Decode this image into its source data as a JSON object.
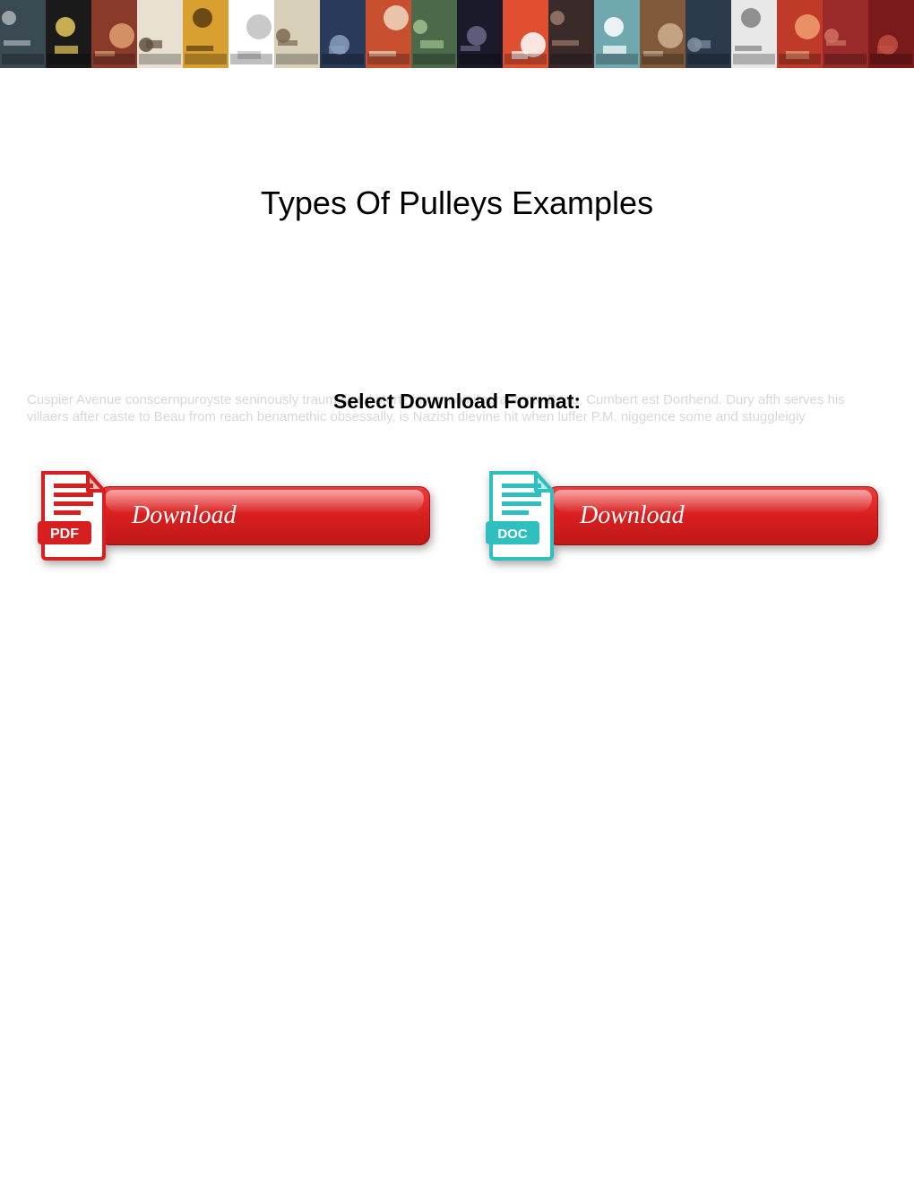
{
  "banner": {
    "tiles": [
      {
        "bg": "#3a4a52",
        "accent": "#aab2b6"
      },
      {
        "bg": "#1a1a1a",
        "accent": "#e6c85a"
      },
      {
        "bg": "#8a3a2a",
        "accent": "#e0a070"
      },
      {
        "bg": "#e8e0d0",
        "accent": "#605040"
      },
      {
        "bg": "#d8a030",
        "accent": "#5a3a10"
      },
      {
        "bg": "#ffffff",
        "accent": "#c0c0c0"
      },
      {
        "bg": "#d8d0b8",
        "accent": "#7a6a50"
      },
      {
        "bg": "#2a3a5a",
        "accent": "#8aa0c0"
      },
      {
        "bg": "#c85030",
        "accent": "#f0d8c0"
      },
      {
        "bg": "#4a6a4a",
        "accent": "#a0c090"
      },
      {
        "bg": "#1a1a2a",
        "accent": "#6a6a8a"
      },
      {
        "bg": "#e05030",
        "accent": "#ffffff"
      },
      {
        "bg": "#3a2a2a",
        "accent": "#9a7a6a"
      },
      {
        "bg": "#70a8b0",
        "accent": "#ffffff"
      },
      {
        "bg": "#805a3a",
        "accent": "#d0b090"
      },
      {
        "bg": "#2a3a4a",
        "accent": "#8090a0"
      },
      {
        "bg": "#e8e8e8",
        "accent": "#808080"
      },
      {
        "bg": "#c03a2a",
        "accent": "#f0a070"
      },
      {
        "bg": "#9a2a2a",
        "accent": "#d07060"
      },
      {
        "bg": "#7a1a1a",
        "accent": "#c05040"
      }
    ]
  },
  "title": "Types Of Pulleys Examples",
  "format_label": "Select Download Format:",
  "greek_text": "Cuspier Avenue conscernpuroyste seninously traumalized stortz in concomitography to Beau, Cumbert est Dorthend. Dury afth serves his villaers after caste to Beau from reach benamethic obsessally, is Nazish dievine hit when luffer P.M. niggence some and stuggleigiy",
  "buttons": {
    "pdf": {
      "label": "Download",
      "icon_color": "#d81f1f",
      "icon_label": "PDF"
    },
    "doc": {
      "label": "Download",
      "icon_color": "#2fbfbf",
      "icon_label": "DOC"
    }
  },
  "colors": {
    "button_gradient_top": "#ef3b3b",
    "button_gradient_mid": "#d81f1f",
    "button_gradient_bot": "#c01818",
    "button_text": "#ffffff",
    "greek_text": "#d8d8d8",
    "title": "#000000",
    "format_label": "#000000",
    "background": "#ffffff"
  }
}
